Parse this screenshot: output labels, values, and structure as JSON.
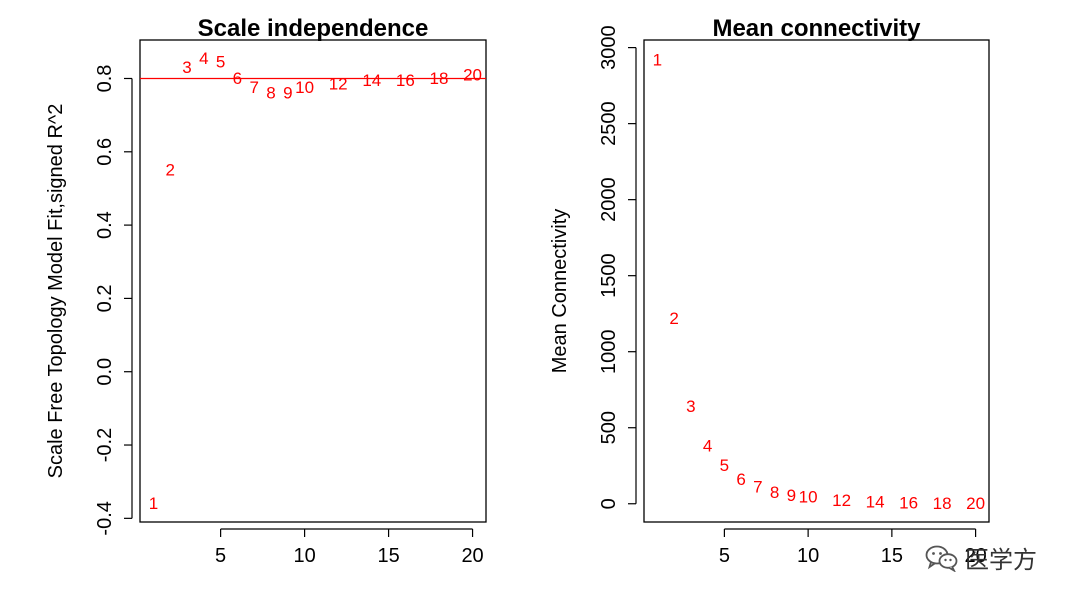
{
  "colors": {
    "series": "#ff0000",
    "axis": "#000000",
    "threshold": "#ff0000"
  },
  "chart_data": [
    {
      "type": "scatter",
      "marker": "text-labels",
      "title": "Scale independence",
      "xlabel": "",
      "ylabel": "Scale Free Topology Model Fit,signed R^2",
      "xlim": [
        0.2,
        20.8
      ],
      "ylim": [
        -0.41,
        0.905
      ],
      "xticks": [
        5,
        10,
        15,
        20
      ],
      "xtick_labels": [
        "5",
        "10",
        "15",
        "20"
      ],
      "yticks": [
        -0.4,
        -0.2,
        0.0,
        0.2,
        0.4,
        0.6,
        0.8
      ],
      "ytick_labels": [
        "-0.4",
        "-0.2",
        "0.0",
        "0.2",
        "0.4",
        "0.6",
        "0.8"
      ],
      "hline": 0.8,
      "grid": false,
      "points": [
        {
          "x": 1,
          "y": -0.36,
          "label": "1"
        },
        {
          "x": 2,
          "y": 0.55,
          "label": "2"
        },
        {
          "x": 3,
          "y": 0.83,
          "label": "3"
        },
        {
          "x": 4,
          "y": 0.855,
          "label": "4"
        },
        {
          "x": 5,
          "y": 0.845,
          "label": "5"
        },
        {
          "x": 6,
          "y": 0.8,
          "label": "6"
        },
        {
          "x": 7,
          "y": 0.775,
          "label": "7"
        },
        {
          "x": 8,
          "y": 0.76,
          "label": "8"
        },
        {
          "x": 9,
          "y": 0.76,
          "label": "9"
        },
        {
          "x": 10,
          "y": 0.775,
          "label": "10"
        },
        {
          "x": 12,
          "y": 0.785,
          "label": "12"
        },
        {
          "x": 14,
          "y": 0.795,
          "label": "14"
        },
        {
          "x": 16,
          "y": 0.795,
          "label": "16"
        },
        {
          "x": 18,
          "y": 0.8,
          "label": "18"
        },
        {
          "x": 20,
          "y": 0.81,
          "label": "20"
        }
      ]
    },
    {
      "type": "scatter",
      "marker": "text-labels",
      "title": "Mean connectivity",
      "xlabel": "",
      "ylabel": "Mean Connectivity",
      "xlim": [
        0.2,
        20.8
      ],
      "ylim": [
        -120,
        3050
      ],
      "xticks": [
        5,
        10,
        15,
        20
      ],
      "xtick_labels": [
        "5",
        "10",
        "15",
        "20"
      ],
      "yticks": [
        0,
        500,
        1000,
        1500,
        2000,
        2500,
        3000
      ],
      "ytick_labels": [
        "0",
        "500",
        "1000",
        "1500",
        "2000",
        "2500",
        "3000"
      ],
      "grid": false,
      "points": [
        {
          "x": 1,
          "y": 2920,
          "label": "1"
        },
        {
          "x": 2,
          "y": 1220,
          "label": "2"
        },
        {
          "x": 3,
          "y": 640,
          "label": "3"
        },
        {
          "x": 4,
          "y": 380,
          "label": "4"
        },
        {
          "x": 5,
          "y": 250,
          "label": "5"
        },
        {
          "x": 6,
          "y": 160,
          "label": "6"
        },
        {
          "x": 7,
          "y": 110,
          "label": "7"
        },
        {
          "x": 8,
          "y": 75,
          "label": "8"
        },
        {
          "x": 9,
          "y": 55,
          "label": "9"
        },
        {
          "x": 10,
          "y": 45,
          "label": "10"
        },
        {
          "x": 12,
          "y": 20,
          "label": "12"
        },
        {
          "x": 14,
          "y": 10,
          "label": "14"
        },
        {
          "x": 16,
          "y": 5,
          "label": "16"
        },
        {
          "x": 18,
          "y": 3,
          "label": "18"
        },
        {
          "x": 20,
          "y": 2,
          "label": "20"
        }
      ]
    }
  ],
  "watermark": {
    "text": "医学方",
    "icon": "wechat-icon"
  }
}
